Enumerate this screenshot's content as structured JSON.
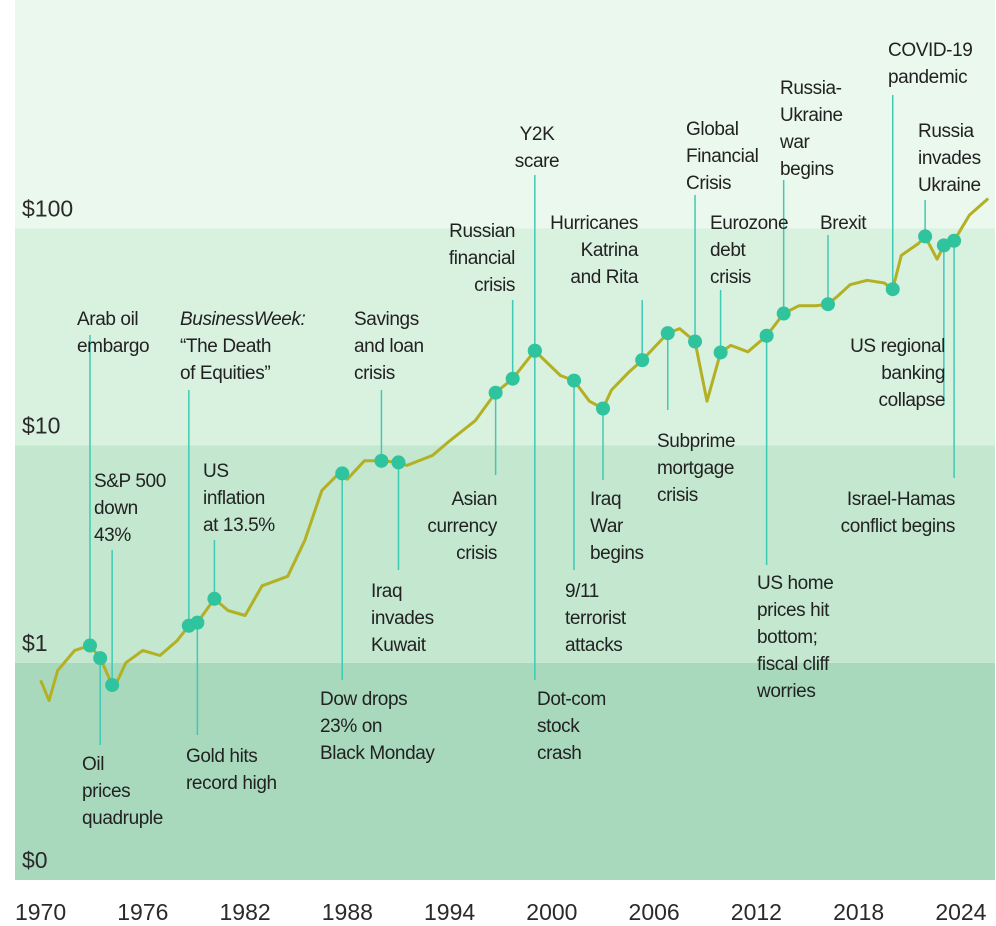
{
  "chart_data": {
    "type": "line",
    "log_scale": true,
    "color": "#b3b024",
    "marker_color": "#2fc39e",
    "leader_color": "#3fcab4",
    "band_colors": [
      "#a9d9bc",
      "#c3e7cf",
      "#d9f1df",
      "#ebf8ed"
    ],
    "xlim": [
      1968.5,
      2026
    ],
    "xticks": [
      1970,
      1976,
      1982,
      1988,
      1994,
      2000,
      2006,
      2012,
      2018,
      2024
    ],
    "ylim": [
      0.1,
      1000
    ],
    "yticks": [
      {
        "value": 0.1,
        "label": "$0"
      },
      {
        "value": 1,
        "label": "$1"
      },
      {
        "value": 10,
        "label": "$10"
      },
      {
        "value": 100,
        "label": "$100"
      }
    ],
    "x": [
      1970,
      1970.5,
      1971,
      1972,
      1972.9,
      1973.5,
      1974.3,
      1975,
      1976,
      1977,
      1978,
      1978.7,
      1979.2,
      1980.2,
      1981,
      1982,
      1983,
      1984.5,
      1985.5,
      1986.5,
      1987.5,
      1988,
      1989,
      1990,
      1991,
      1991.5,
      1993,
      1994,
      1995.5,
      1996.7,
      1997.7,
      1999,
      1999.5,
      2000.5,
      2001.3,
      2002.2,
      2003,
      2003.5,
      2004.5,
      2005.3,
      2006.8,
      2007.5,
      2008.4,
      2009.1,
      2009.9,
      2010.5,
      2011.5,
      2012.6,
      2013.6,
      2014.5,
      2015.5,
      2016.2,
      2016.8,
      2017.5,
      2018.5,
      2019.5,
      2020,
      2020.5,
      2021.5,
      2021.9,
      2022.6,
      2023,
      2023.6,
      2024.5,
      2025.6
    ],
    "values": [
      0.83,
      0.67,
      0.92,
      1.14,
      1.2,
      1.05,
      0.76,
      1.0,
      1.14,
      1.08,
      1.26,
      1.48,
      1.53,
      1.97,
      1.74,
      1.65,
      2.26,
      2.5,
      3.65,
      6.2,
      7.44,
      7.0,
      8.5,
      8.5,
      8.36,
      8.1,
      9.0,
      10.5,
      13,
      17.5,
      20.3,
      27.3,
      25,
      21,
      19.9,
      16,
      14.8,
      18,
      21.7,
      24.7,
      32.9,
      34.5,
      30.1,
      16,
      26.8,
      28.9,
      27,
      32,
      40.5,
      44,
      44,
      44.7,
      49,
      55,
      57.6,
      56,
      52.4,
      75,
      85,
      91.7,
      72,
      83.4,
      87.6,
      115,
      137
    ],
    "events": [
      {
        "lines": [
          "Arab oil",
          "embargo"
        ],
        "x": 1972.9,
        "value": 1.2
      },
      {
        "lines": [
          "Oil",
          "prices",
          "quadruple"
        ],
        "x": 1973.5,
        "value": 1.05
      },
      {
        "lines": [
          "S&P 500",
          "down",
          "43%"
        ],
        "x": 1974.2,
        "value": 0.79
      },
      {
        "lines": [
          "BusinessWeek:",
          "“The Death",
          "of Equities”"
        ],
        "x": 1978.7,
        "value": 1.48
      },
      {
        "lines": [
          "Gold hits",
          "record high"
        ],
        "x": 1979.2,
        "value": 1.53
      },
      {
        "lines": [
          "US",
          "inflation",
          "at 13.5%"
        ],
        "x": 1980.2,
        "value": 1.97
      },
      {
        "lines": [
          "Dow drops",
          "23% on",
          "Black Monday"
        ],
        "x": 1987.7,
        "value": 7.44
      },
      {
        "lines": [
          "Savings",
          "and loan",
          "crisis"
        ],
        "x": 1990.0,
        "value": 8.5
      },
      {
        "lines": [
          "Iraq",
          "invades",
          "Kuwait"
        ],
        "x": 1991.0,
        "value": 8.36
      },
      {
        "lines": [
          "Asian",
          "currency",
          "crisis"
        ],
        "x": 1996.7,
        "value": 17.5
      },
      {
        "lines": [
          "Russian",
          "financial",
          "crisis"
        ],
        "x": 1997.7,
        "value": 20.3
      },
      {
        "lines": [
          "Y2K",
          "scare"
        ],
        "x": 1999.0,
        "value": 27.3
      },
      {
        "lines": [
          "Dot-com",
          "stock",
          "crash"
        ],
        "x": 1999.0,
        "value": 27.3
      },
      {
        "lines": [
          "9/11",
          "terrorist",
          "attacks"
        ],
        "x": 2001.3,
        "value": 19.9
      },
      {
        "lines": [
          "Iraq",
          "War",
          "begins"
        ],
        "x": 2003.0,
        "value": 14.8
      },
      {
        "lines": [
          "Hurricanes",
          "Katrina",
          "and Rita"
        ],
        "x": 2005.3,
        "value": 24.7
      },
      {
        "lines": [
          "Subprime",
          "mortgage",
          "crisis"
        ],
        "x": 2006.8,
        "value": 32.9
      },
      {
        "lines": [
          "Global",
          "Financial",
          "Crisis"
        ],
        "x": 2008.4,
        "value": 30.1
      },
      {
        "lines": [
          "Eurozone",
          "debt",
          "crisis"
        ],
        "x": 2009.9,
        "value": 26.8
      },
      {
        "lines": [
          "US home",
          "prices hit",
          "bottom;",
          "fiscal cliff",
          "worries"
        ],
        "x": 2012.6,
        "value": 32.0
      },
      {
        "lines": [
          "Russia-",
          "Ukraine",
          "war",
          "begins"
        ],
        "x": 2013.6,
        "value": 40.5
      },
      {
        "lines": [
          "Brexit"
        ],
        "x": 2016.2,
        "value": 44.7
      },
      {
        "lines": [
          "COVID-19",
          "pandemic"
        ],
        "x": 2020.0,
        "value": 52.4
      },
      {
        "lines": [
          "Russia",
          "invades",
          "Ukraine"
        ],
        "x": 2021.9,
        "value": 91.7
      },
      {
        "lines": [
          "US regional",
          "banking",
          "collapse"
        ],
        "x": 2023.0,
        "value": 83.4
      },
      {
        "lines": [
          "Israel-Hamas",
          "conflict begins"
        ],
        "x": 2023.6,
        "value": 87.6
      }
    ]
  }
}
